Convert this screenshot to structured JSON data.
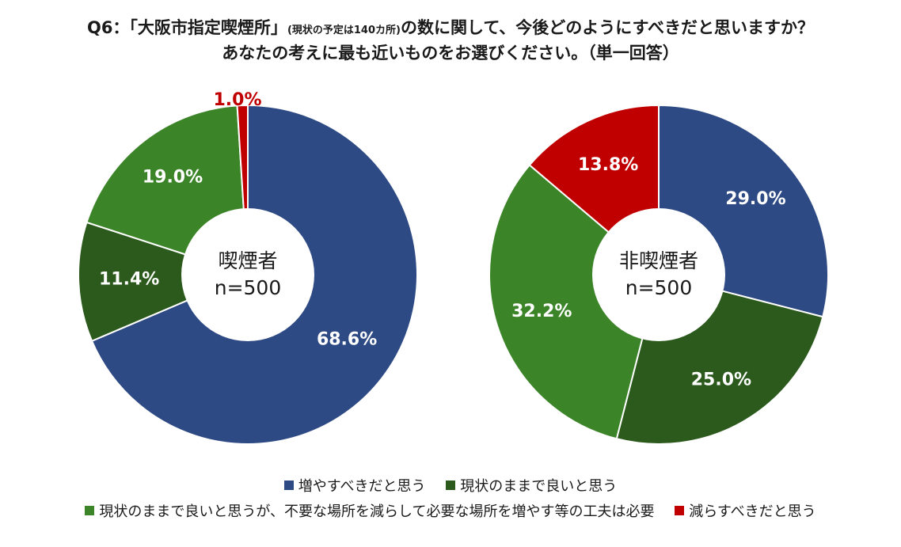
{
  "title": {
    "prefix": "Q6：「大阪市指定喫煙所」",
    "note": "(現状の予定は140カ所)",
    "suffix": "の数に関して、今後どのようにすべきだと思いますか？",
    "line2": "あなたの考えに最も近いものをお選びください。（単一回答）"
  },
  "colors": {
    "increase": "#2e4a84",
    "keep": "#2b5a1c",
    "keep_relocate": "#3c8428",
    "decrease": "#c00000",
    "label_white": "#ffffff",
    "label_red": "#c00000"
  },
  "legend": [
    {
      "key": "increase",
      "label": "増やすべきだと思う"
    },
    {
      "key": "keep",
      "label": "現状のままで良いと思う"
    },
    {
      "key": "keep_relocate",
      "label": "現状のままで良いと思うが、不要な場所を減らして必要な場所を増やす等の工夫は必要"
    },
    {
      "key": "decrease",
      "label": "減らすべきだと思う"
    }
  ],
  "chart_data": [
    {
      "type": "pie",
      "center_label": [
        "喫煙者",
        "n=500"
      ],
      "slices": [
        {
          "key": "increase",
          "value": 68.6,
          "label": "68.6%"
        },
        {
          "key": "keep",
          "value": 11.4,
          "label": "11.4%"
        },
        {
          "key": "keep_relocate",
          "value": 19.0,
          "label": "19.0%"
        },
        {
          "key": "decrease",
          "value": 1.0,
          "label": "1.0%"
        }
      ]
    },
    {
      "type": "pie",
      "center_label": [
        "非喫煙者",
        "n=500"
      ],
      "slices": [
        {
          "key": "increase",
          "value": 29.0,
          "label": "29.0%"
        },
        {
          "key": "keep",
          "value": 25.0,
          "label": "25.0%"
        },
        {
          "key": "keep_relocate",
          "value": 32.2,
          "label": "32.2%"
        },
        {
          "key": "decrease",
          "value": 13.8,
          "label": "13.8%"
        }
      ]
    }
  ]
}
